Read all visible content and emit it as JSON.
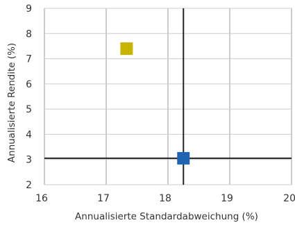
{
  "chart_data": {
    "type": "scatter",
    "xlabel": "Annualisierte Standardabweichung (%)",
    "ylabel": "Annualisierte Rendite (%)",
    "xlim": [
      16,
      20
    ],
    "ylim": [
      2,
      9
    ],
    "xticks": [
      16,
      17,
      18,
      19,
      20
    ],
    "yticks": [
      2,
      3,
      4,
      5,
      6,
      7,
      8,
      9
    ],
    "grid": true,
    "reference_lines": {
      "x": 18.25,
      "y": 3.05
    },
    "points": [
      {
        "x": 17.33,
        "y": 7.4,
        "color": "#c8b400"
      },
      {
        "x": 18.25,
        "y": 3.05,
        "color": "#1f63b3"
      }
    ]
  }
}
